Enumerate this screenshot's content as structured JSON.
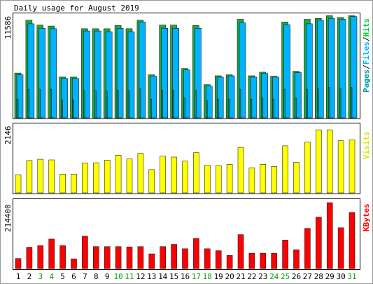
{
  "chart_data": [
    {
      "type": "bar",
      "title": "Daily usage for August 2019",
      "y_max_label": "11586",
      "ylim": [
        0,
        11586
      ],
      "categories": [
        "1",
        "2",
        "3",
        "4",
        "5",
        "6",
        "7",
        "8",
        "9",
        "10",
        "11",
        "12",
        "13",
        "14",
        "15",
        "16",
        "17",
        "18",
        "19",
        "20",
        "21",
        "22",
        "23",
        "24",
        "25",
        "26",
        "27",
        "28",
        "29",
        "30",
        "31"
      ],
      "legend": [
        {
          "text": "Pages",
          "color": "#00a0a0"
        },
        {
          "text": "/",
          "color": "#000000"
        },
        {
          "text": "Files",
          "color": "#00b2ff"
        },
        {
          "text": "/",
          "color": "#000000"
        },
        {
          "text": "Hits",
          "color": "#00cc33"
        }
      ],
      "series": [
        {
          "name": "Hits",
          "color": "#1fa83f",
          "values": [
            5000,
            10900,
            10350,
            10250,
            4550,
            4550,
            9950,
            9950,
            9950,
            10300,
            9950,
            10900,
            4800,
            10350,
            10350,
            5500,
            10300,
            3700,
            4700,
            4800,
            11000,
            4700,
            5100,
            4650,
            10700,
            5200,
            11000,
            11100,
            11400,
            11200,
            11400
          ]
        },
        {
          "name": "Files",
          "color": "#00b2ff",
          "values": [
            4800,
            10500,
            10000,
            9950,
            4400,
            4400,
            9700,
            9700,
            9600,
            10000,
            9600,
            10700,
            4650,
            10000,
            10000,
            5350,
            10000,
            3550,
            4550,
            4700,
            10600,
            4550,
            4950,
            4550,
            10400,
            5050,
            10500,
            10900,
            11100,
            11000,
            11300
          ]
        },
        {
          "name": "Pages",
          "color": "#009898",
          "values": [
            2100,
            3200,
            3200,
            3200,
            2000,
            2000,
            3000,
            3000,
            3000,
            3100,
            3000,
            3300,
            2100,
            3100,
            3100,
            2200,
            3100,
            1900,
            2100,
            2100,
            3200,
            2100,
            2200,
            2100,
            3200,
            2200,
            3200,
            3300,
            3400,
            3300,
            3400
          ]
        }
      ],
      "grid": false
    },
    {
      "type": "bar",
      "y_max_label": "2146",
      "ylim": [
        0,
        2146
      ],
      "categories": [
        "1",
        "2",
        "3",
        "4",
        "5",
        "6",
        "7",
        "8",
        "9",
        "10",
        "11",
        "12",
        "13",
        "14",
        "15",
        "16",
        "17",
        "18",
        "19",
        "20",
        "21",
        "22",
        "23",
        "24",
        "25",
        "26",
        "27",
        "28",
        "29",
        "30",
        "31"
      ],
      "legend": [
        {
          "text": "Visits",
          "color": "#e0e000"
        }
      ],
      "series": [
        {
          "name": "Visits",
          "color": "#ffff00",
          "values": [
            580,
            1030,
            1070,
            1050,
            600,
            600,
            950,
            960,
            1040,
            1200,
            1080,
            1260,
            740,
            1170,
            1140,
            1010,
            1280,
            880,
            870,
            910,
            1450,
            800,
            910,
            840,
            1500,
            970,
            1620,
            2010,
            2010,
            1660,
            1690
          ]
        }
      ],
      "grid": false
    },
    {
      "type": "bar",
      "y_max_label": "214400",
      "ylim": [
        0,
        214400
      ],
      "categories": [
        "1",
        "2",
        "3",
        "4",
        "5",
        "6",
        "7",
        "8",
        "9",
        "10",
        "11",
        "12",
        "13",
        "14",
        "15",
        "16",
        "17",
        "18",
        "19",
        "20",
        "21",
        "22",
        "23",
        "24",
        "25",
        "26",
        "27",
        "28",
        "29",
        "30",
        "31"
      ],
      "legend": [
        {
          "text": "KBytes",
          "color": "#ff0000"
        }
      ],
      "series": [
        {
          "name": "KBytes",
          "color": "#ff0000",
          "values": [
            32000,
            68000,
            73000,
            94000,
            73000,
            31000,
            103000,
            70000,
            70000,
            70000,
            69000,
            70000,
            47000,
            70000,
            77000,
            63000,
            96000,
            63000,
            57000,
            42000,
            108000,
            49000,
            49000,
            49000,
            91000,
            60000,
            128000,
            164000,
            210000,
            130000,
            179000
          ]
        }
      ],
      "grid": false
    }
  ],
  "x_labels": [
    {
      "text": "1",
      "color": "#000000"
    },
    {
      "text": "2",
      "color": "#000000"
    },
    {
      "text": "3",
      "color": "#00a000"
    },
    {
      "text": "4",
      "color": "#00a000"
    },
    {
      "text": "5",
      "color": "#000000"
    },
    {
      "text": "6",
      "color": "#000000"
    },
    {
      "text": "7",
      "color": "#000000"
    },
    {
      "text": "8",
      "color": "#000000"
    },
    {
      "text": "9",
      "color": "#000000"
    },
    {
      "text": "10",
      "color": "#00a000"
    },
    {
      "text": "11",
      "color": "#00a000"
    },
    {
      "text": "12",
      "color": "#000000"
    },
    {
      "text": "13",
      "color": "#000000"
    },
    {
      "text": "14",
      "color": "#000000"
    },
    {
      "text": "15",
      "color": "#000000"
    },
    {
      "text": "16",
      "color": "#000000"
    },
    {
      "text": "17",
      "color": "#00a000"
    },
    {
      "text": "18",
      "color": "#00a000"
    },
    {
      "text": "19",
      "color": "#000000"
    },
    {
      "text": "20",
      "color": "#000000"
    },
    {
      "text": "21",
      "color": "#000000"
    },
    {
      "text": "22",
      "color": "#000000"
    },
    {
      "text": "23",
      "color": "#000000"
    },
    {
      "text": "24",
      "color": "#00a000"
    },
    {
      "text": "25",
      "color": "#00a000"
    },
    {
      "text": "26",
      "color": "#000000"
    },
    {
      "text": "27",
      "color": "#000000"
    },
    {
      "text": "28",
      "color": "#000000"
    },
    {
      "text": "29",
      "color": "#000000"
    },
    {
      "text": "30",
      "color": "#000000"
    },
    {
      "text": "31",
      "color": "#00a000"
    }
  ]
}
